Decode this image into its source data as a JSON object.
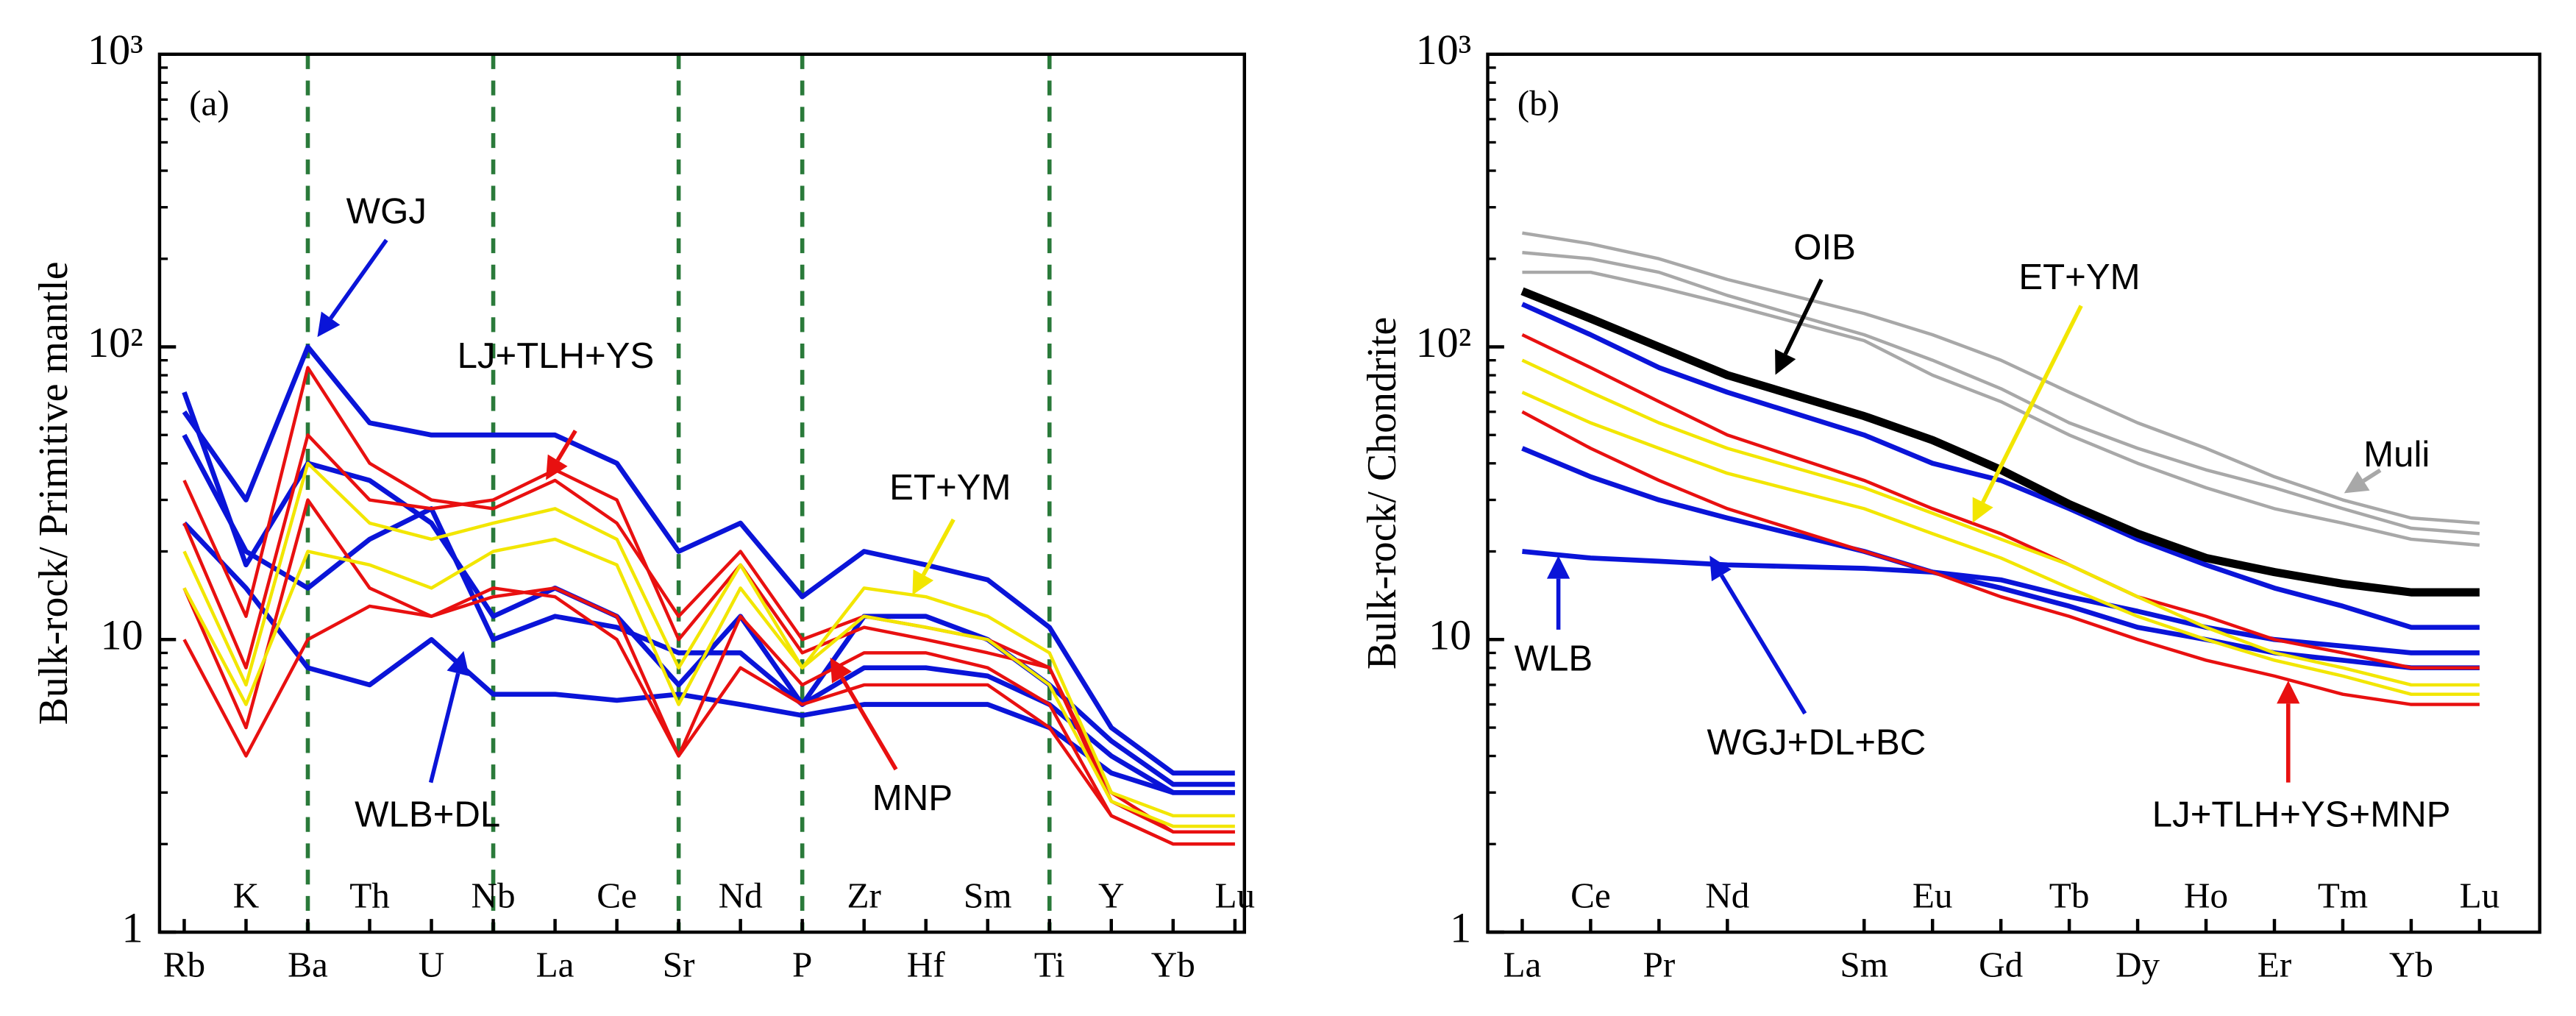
{
  "chart_data": [
    {
      "type": "line",
      "panel_label": "(a)",
      "ylabel": "Bulk-rock/ Primitive mantle",
      "log_y": true,
      "ylim": [
        1,
        1000
      ],
      "yticks": [
        1,
        10,
        {
          "value": 100,
          "label": "10²"
        },
        {
          "value": 1000,
          "label": "10³"
        }
      ],
      "categories": [
        "Rb",
        "K",
        "Ba",
        "Th",
        "U",
        "Nb",
        "La",
        "Ce",
        "Sr",
        "Nd",
        "P",
        "Zr",
        "Hf",
        "Sm",
        "Ti",
        "Y",
        "Yb",
        "Lu"
      ],
      "category_colors": [
        "#000",
        "#000",
        "#000",
        "#000",
        "#000",
        "#3a9a3a",
        "#000",
        "#000",
        "#3a9a3a",
        "#000",
        "#3a9a3a",
        "#000",
        "#000",
        "#000",
        "#3a9a3a",
        "#000",
        "#000",
        "#000"
      ],
      "vlines": [
        2,
        5,
        8,
        10,
        14
      ],
      "vline_color": "#2a7a3a",
      "series": [
        {
          "color": "#0a14d8",
          "width": 3,
          "values": [
            25,
            15,
            8,
            7,
            10,
            6.5,
            6.5,
            6.2,
            6.5,
            6,
            5.5,
            6,
            6,
            6,
            5,
            3.5,
            3,
            3
          ]
        },
        {
          "color": "#0a14d8",
          "width": 3,
          "values": [
            50,
            20,
            15,
            22,
            28,
            10,
            12,
            11,
            9,
            9,
            6,
            8,
            8,
            7.5,
            6,
            4,
            3,
            3
          ]
        },
        {
          "color": "#0a14d8",
          "width": 3,
          "values": [
            70,
            18,
            40,
            35,
            25,
            12,
            15,
            12,
            7,
            12,
            6,
            12,
            12,
            10,
            7,
            4.5,
            3.2,
            3.2
          ]
        },
        {
          "color": "#e81010",
          "width": 2,
          "values": [
            35,
            12,
            85,
            40,
            30,
            28,
            35,
            25,
            12,
            20,
            10,
            12,
            11,
            10,
            8,
            2.8,
            2.2,
            2.2
          ]
        },
        {
          "color": "#e81010",
          "width": 2,
          "values": [
            15,
            5,
            30,
            15,
            12,
            14,
            15,
            12,
            4,
            12,
            7,
            9,
            9,
            8,
            6,
            2.5,
            2,
            2
          ]
        },
        {
          "color": "#e81010",
          "width": 2,
          "values": [
            10,
            4,
            10,
            13,
            12,
            15,
            14,
            10,
            4,
            8,
            6,
            7,
            7,
            7,
            5,
            2.5,
            2,
            2
          ]
        },
        {
          "color": "#e81010",
          "width": 2,
          "values": [
            25,
            8,
            50,
            30,
            28,
            30,
            38,
            30,
            10,
            18,
            9,
            11,
            10,
            9,
            8,
            3,
            2.2,
            2.2
          ]
        },
        {
          "color": "#f2e600",
          "width": 2,
          "values": [
            20,
            7,
            40,
            25,
            22,
            25,
            28,
            22,
            8,
            18,
            8,
            15,
            14,
            12,
            9,
            3,
            2.5,
            2.5
          ]
        },
        {
          "color": "#f2e600",
          "width": 2,
          "values": [
            15,
            6,
            20,
            18,
            15,
            20,
            22,
            18,
            6,
            15,
            8,
            12,
            11,
            10,
            7,
            2.8,
            2.3,
            2.3
          ]
        },
        {
          "color": "#0a14d8",
          "width": 3,
          "values": [
            60,
            30,
            100,
            55,
            50,
            50,
            50,
            40,
            20,
            25,
            14,
            20,
            18,
            16,
            11,
            5,
            3.5,
            3.5
          ]
        }
      ],
      "annotations": [
        {
          "text": "WGJ",
          "color": "#0a14d8",
          "arrow_color": "#0a14d8"
        },
        {
          "text": "LJ+TLH+YS",
          "color": "#e81010",
          "arrow_color": "#e81010"
        },
        {
          "text": "ET+YM",
          "color": "#000000",
          "arrow_color": "#f2e600"
        },
        {
          "text": "WLB+DL",
          "color": "#0a14d8",
          "arrow_color": "#0a14d8"
        },
        {
          "text": "MNP",
          "color": "#e81010",
          "arrow_color": "#e81010"
        }
      ]
    },
    {
      "type": "line",
      "panel_label": "(b)",
      "ylabel": "Bulk-rock/ Chondrite",
      "log_y": true,
      "ylim": [
        1,
        1000
      ],
      "yticks": [
        1,
        10,
        {
          "value": 100,
          "label": "10²"
        },
        {
          "value": 1000,
          "label": "10³"
        }
      ],
      "categories": [
        "La",
        "Ce",
        "Pr",
        "Nd",
        "Sm",
        "Eu",
        "Gd",
        "Tb",
        "Dy",
        "Ho",
        "Er",
        "Tm",
        "Yb",
        "Lu"
      ],
      "series": [
        {
          "color": "#a8a8a8",
          "width": 2,
          "values": [
            245,
            225,
            200,
            170,
            130,
            110,
            90,
            70,
            55,
            45,
            36,
            30,
            26,
            25
          ]
        },
        {
          "color": "#a8a8a8",
          "width": 2,
          "values": [
            210,
            200,
            180,
            150,
            110,
            90,
            72,
            55,
            45,
            38,
            33,
            28,
            24,
            23
          ]
        },
        {
          "color": "#a8a8a8",
          "width": 2,
          "values": [
            180,
            180,
            160,
            140,
            105,
            80,
            65,
            50,
            40,
            33,
            28,
            25,
            22,
            21
          ]
        },
        {
          "color": "#0a14d8",
          "width": 3,
          "values": [
            20,
            19,
            18.5,
            18,
            17.5,
            17,
            16,
            14,
            12.5,
            11,
            10,
            9.5,
            9,
            9
          ]
        },
        {
          "color": "#0a14d8",
          "width": 3,
          "values": [
            45,
            36,
            30,
            26,
            20,
            17,
            15,
            13,
            11,
            10,
            9,
            8.5,
            8,
            8
          ]
        },
        {
          "color": "#e81010",
          "width": 2,
          "values": [
            60,
            45,
            35,
            28,
            20,
            17,
            14,
            12,
            10,
            8.5,
            7.5,
            6.5,
            6,
            6
          ]
        },
        {
          "color": "#e81010",
          "width": 2,
          "values": [
            110,
            85,
            65,
            50,
            35,
            28,
            23,
            18,
            14,
            12,
            10,
            9,
            8,
            8
          ]
        },
        {
          "color": "#f2e600",
          "width": 2,
          "values": [
            90,
            70,
            55,
            45,
            33,
            27,
            22,
            18,
            14,
            11,
            9,
            8,
            7,
            7
          ]
        },
        {
          "color": "#f2e600",
          "width": 2,
          "values": [
            70,
            55,
            45,
            37,
            28,
            23,
            19,
            15,
            12,
            10,
            8.5,
            7.5,
            6.5,
            6.5
          ]
        },
        {
          "color": "#0a14d8",
          "width": 3,
          "values": [
            140,
            110,
            85,
            70,
            50,
            40,
            35,
            28,
            22,
            18,
            15,
            13,
            11,
            11
          ]
        },
        {
          "color": "#000000",
          "width": 5,
          "values": [
            155,
            125,
            100,
            80,
            58,
            48,
            38,
            29,
            23,
            19,
            17,
            15.5,
            14.5,
            14.5
          ]
        }
      ],
      "annotations": [
        {
          "text": "OIB",
          "color": "#000000",
          "arrow_color": "#000000"
        },
        {
          "text": "ET+YM",
          "color": "#000000",
          "arrow_color": "#f2e600"
        },
        {
          "text": "Muli",
          "color": "#a8a8a8",
          "arrow_color": "#a8a8a8"
        },
        {
          "text": "WLB",
          "color": "#0a14d8",
          "arrow_color": "#0a14d8"
        },
        {
          "text": "WGJ+DL+BC",
          "color": "#0a14d8",
          "arrow_color": "#0a14d8"
        },
        {
          "text": "LJ+TLH+YS+MNP",
          "color": "#e81010",
          "arrow_color": "#e81010"
        }
      ]
    }
  ]
}
